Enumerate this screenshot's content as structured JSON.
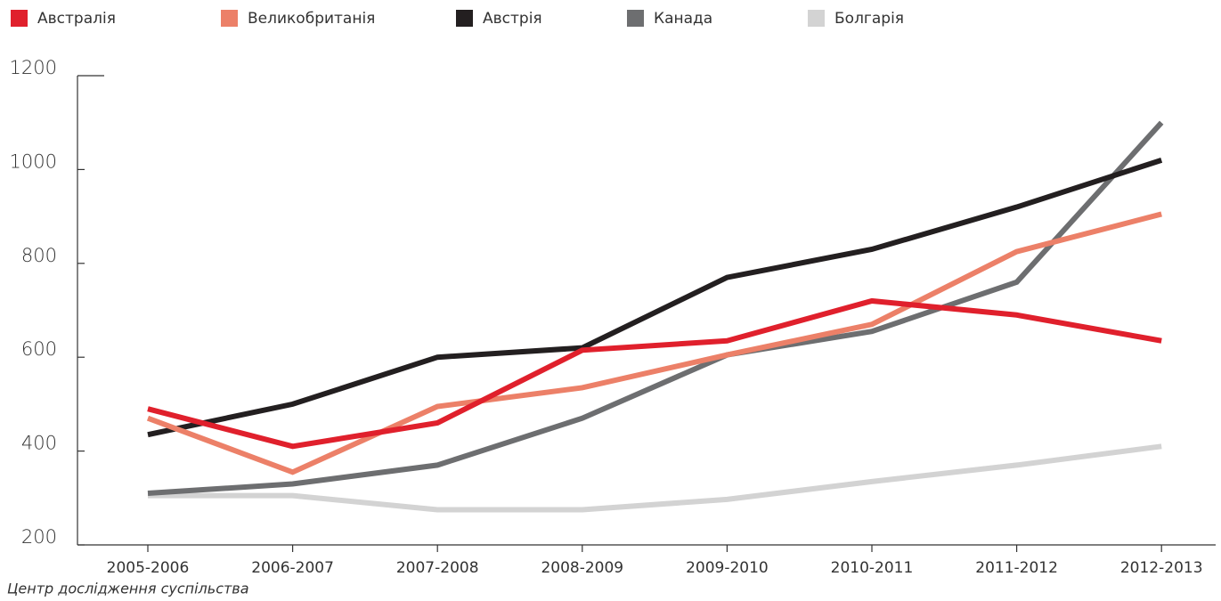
{
  "chart_data": {
    "type": "line",
    "categories": [
      "2005-2006",
      "2006-2007",
      "2007-2008",
      "2008-2009",
      "2009-2010",
      "2010-2011",
      "2011-2012",
      "2012-2013"
    ],
    "series": [
      {
        "name": "Австралія",
        "color": "#e0202c",
        "values": [
          490,
          410,
          460,
          615,
          635,
          720,
          690,
          635
        ]
      },
      {
        "name": "Великобританія",
        "color": "#ec8068",
        "values": [
          470,
          355,
          495,
          535,
          605,
          670,
          825,
          905
        ]
      },
      {
        "name": "Австрія",
        "color": "#231f20",
        "values": [
          435,
          500,
          600,
          620,
          770,
          830,
          920,
          1020
        ]
      },
      {
        "name": "Канада",
        "color": "#6d6e70",
        "values": [
          310,
          330,
          370,
          470,
          605,
          655,
          760,
          1100
        ]
      },
      {
        "name": "Болгарія",
        "color": "#d3d3d3",
        "values": [
          305,
          305,
          275,
          275,
          297,
          335,
          370,
          410
        ]
      }
    ],
    "ylim": [
      200,
      1200
    ],
    "yticks": [
      200,
      400,
      600,
      800,
      1000,
      1200
    ],
    "legend": "top",
    "source": "Центр дослідження суспільства"
  }
}
